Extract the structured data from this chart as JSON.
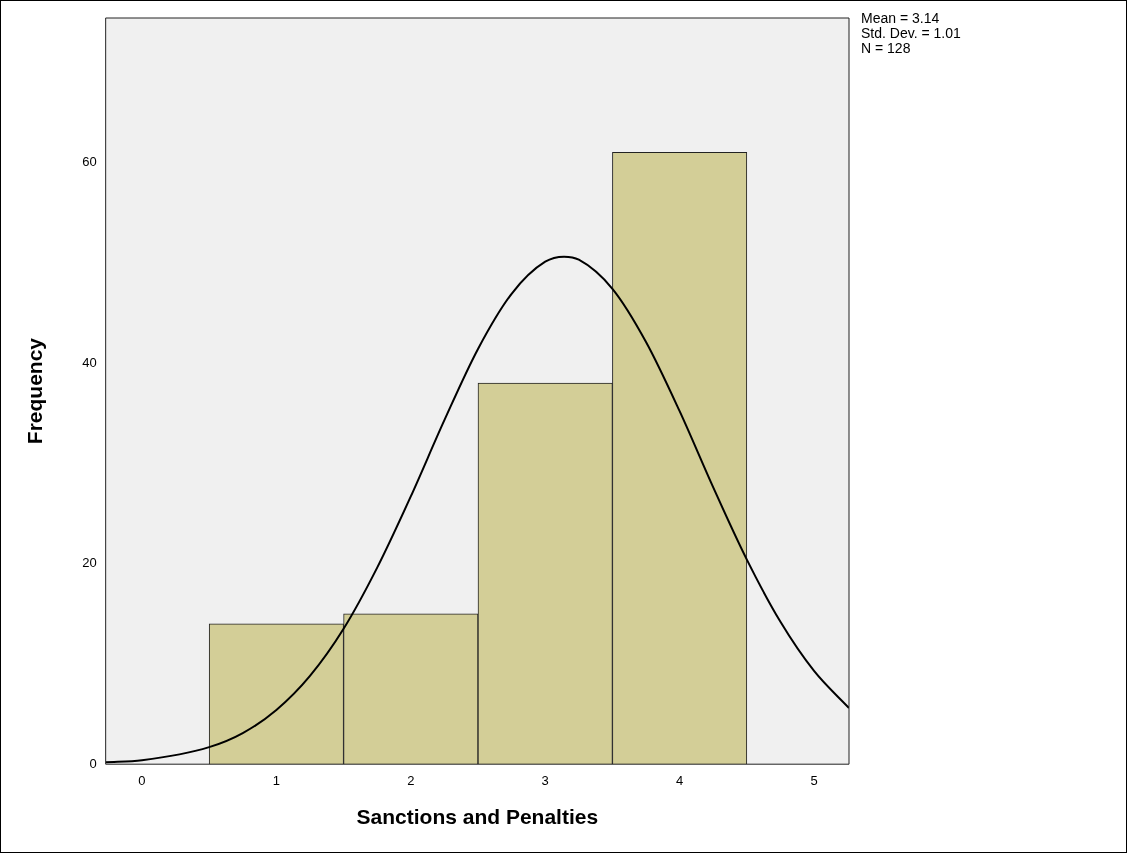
{
  "chart_data": {
    "type": "histogram",
    "xlabel": "Sanctions and Penalties",
    "ylabel": "Frequency",
    "bins": [
      0.5,
      1.5,
      2.5,
      3.5,
      4.5
    ],
    "values": [
      14,
      15,
      38,
      61
    ],
    "color": "#d3ce97",
    "series": [
      {
        "type": "line",
        "color": "#000000",
        "marker": "none",
        "line_style": "solid",
        "x": [
          -0.27,
          0,
          0.5,
          0.75,
          1,
          1.25,
          1.5,
          1.75,
          2,
          2.25,
          2.5,
          2.75,
          3,
          3.14,
          3.25,
          3.5,
          3.75,
          4,
          4.25,
          4.5,
          4.75,
          5,
          5.26
        ],
        "values": [
          0.2,
          0.4,
          1.7,
          3.1,
          5.4,
          8.8,
          13.5,
          19.6,
          26.7,
          34.3,
          41.4,
          46.9,
          50.1,
          50.6,
          50.3,
          47.4,
          42.1,
          35.2,
          27.6,
          20.4,
          14.2,
          9.3,
          5.6
        ]
      }
    ],
    "xlim": [
      -0.27,
      5.26
    ],
    "ylim": [
      0,
      74.4
    ],
    "xticks": [
      0,
      1,
      2,
      3,
      4,
      5
    ],
    "yticks": [
      0,
      20,
      40,
      60
    ],
    "grid": false,
    "annotations": [
      "Mean = 3.14",
      "Std. Dev. = 1.01",
      "N = 128"
    ]
  }
}
